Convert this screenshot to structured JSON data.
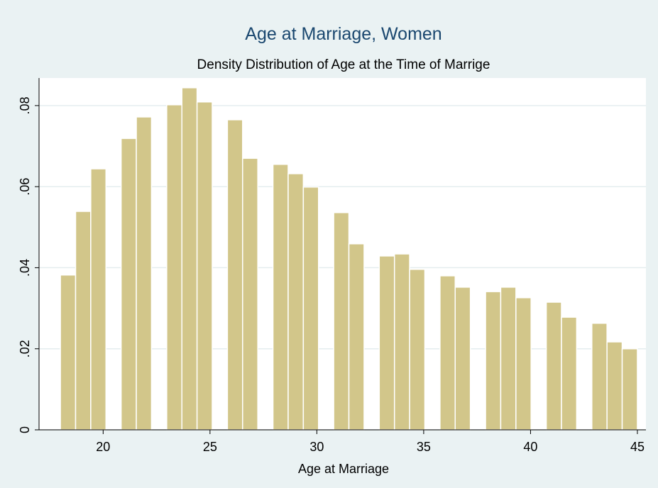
{
  "chart_data": {
    "type": "histogram",
    "title": "Age at Marriage, Women",
    "subtitle": "Density Distribution of Age at the Time of Marrige",
    "x_label": "Age at Marriage",
    "bins": [
      18,
      18.711,
      19.421,
      20.132,
      20.842,
      21.553,
      22.263,
      22.974,
      23.684,
      24.395,
      25.105,
      25.816,
      26.526,
      27.237,
      27.947,
      28.658,
      29.368,
      30.079,
      30.789,
      31.5,
      32.211,
      32.921,
      33.632,
      34.342,
      35.053,
      35.763,
      36.474,
      37.184,
      37.895,
      38.605,
      39.316,
      40.026,
      40.737,
      41.447,
      42.158,
      42.868,
      43.579,
      44.289,
      45
    ],
    "values": [
      0.0382,
      0.0539,
      0.0644,
      0,
      0.0719,
      0.0772,
      0,
      0.0802,
      0.0844,
      0.0809,
      0,
      0.0765,
      0.067,
      0,
      0.0655,
      0.0632,
      0.0599,
      0,
      0.0536,
      0.0459,
      0,
      0.0429,
      0.0434,
      0.0396,
      0,
      0.038,
      0.0352,
      0,
      0.0341,
      0.0352,
      0.0326,
      0,
      0.0315,
      0.0278,
      0,
      0.0263,
      0.0217,
      0.02
    ],
    "color": "#d2c68a",
    "xlim": [
      17,
      45.4
    ],
    "xticks": [
      20,
      25,
      30,
      35,
      40,
      45
    ],
    "ylim": [
      0,
      0.0868
    ],
    "yticks": [
      0,
      {
        "value": 0.02,
        "label": ".02"
      },
      {
        "value": 0.04,
        "label": ".04"
      },
      {
        "value": 0.06,
        "label": ".06"
      },
      {
        "value": 0.08,
        "label": ".08"
      }
    ],
    "grid": true
  }
}
